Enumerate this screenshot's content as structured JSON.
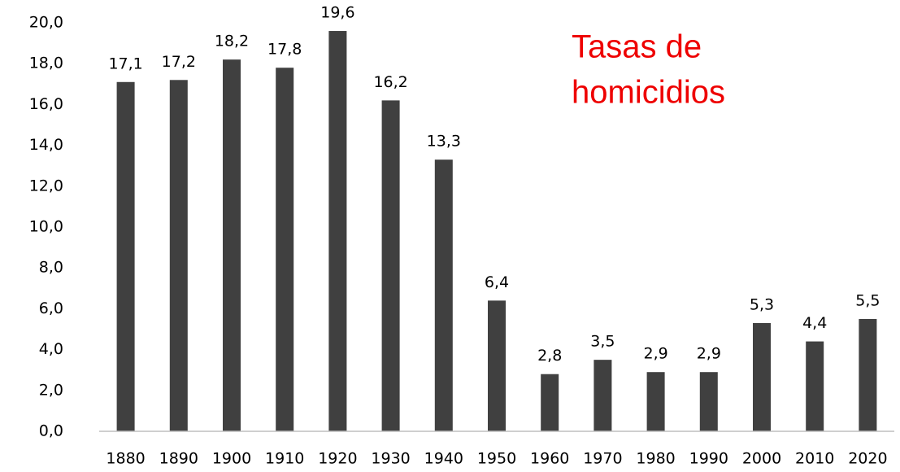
{
  "chart_data": {
    "type": "bar",
    "title": [
      "Tasas de",
      "homicidios"
    ],
    "title_color": "#ee0000",
    "categories": [
      "1880",
      "1890",
      "1900",
      "1910",
      "1920",
      "1930",
      "1940",
      "1950",
      "1960",
      "1970",
      "1980",
      "1990",
      "2000",
      "2010",
      "2020"
    ],
    "values": [
      17.1,
      17.2,
      18.2,
      17.8,
      19.6,
      16.2,
      13.3,
      6.4,
      2.8,
      3.5,
      2.9,
      2.9,
      5.3,
      4.4,
      5.5
    ],
    "value_labels": [
      "17,1",
      "17,2",
      "18,2",
      "17,8",
      "19,6",
      "16,2",
      "13,3",
      "6,4",
      "2,8",
      "3,5",
      "2,9",
      "2,9",
      "5,3",
      "4,4",
      "5,5"
    ],
    "color": "#404040",
    "ylim": [
      0,
      20
    ],
    "yticks": [
      {
        "value": 0,
        "label": "0,0"
      },
      {
        "value": 2,
        "label": "2,0"
      },
      {
        "value": 4,
        "label": "4,0"
      },
      {
        "value": 6,
        "label": "6,0"
      },
      {
        "value": 8,
        "label": "8,0"
      },
      {
        "value": 10,
        "label": "10,0"
      },
      {
        "value": 12,
        "label": "12,0"
      },
      {
        "value": 14,
        "label": "14,0"
      },
      {
        "value": 16,
        "label": "16,0"
      },
      {
        "value": 18,
        "label": "18,0"
      },
      {
        "value": 20,
        "label": "20,0"
      }
    ],
    "grid": false
  }
}
